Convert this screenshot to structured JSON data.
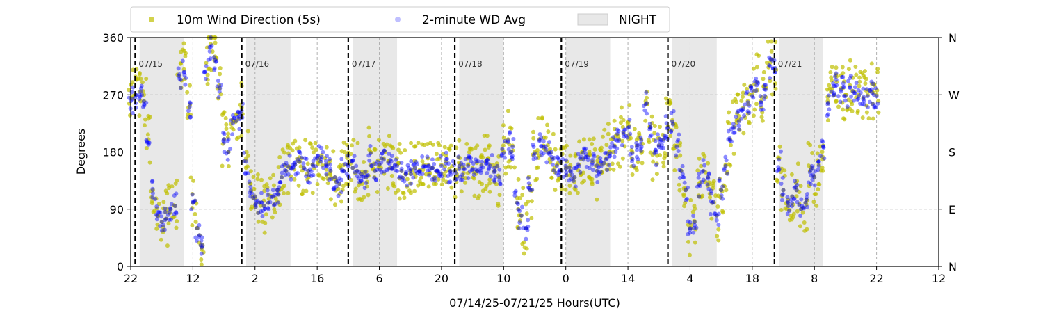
{
  "chart_data": {
    "type": "scatter",
    "title": "",
    "xlabel": "07/14/25-07/21/25  Hours(UTC)",
    "ylabel": "Degrees",
    "x_unit": "hours",
    "xlim": [
      0,
      182
    ],
    "ylim": [
      0,
      360
    ],
    "x_ticks": [
      {
        "x": 0,
        "label": "22"
      },
      {
        "x": 14,
        "label": "12"
      },
      {
        "x": 28,
        "label": "2"
      },
      {
        "x": 42,
        "label": "16"
      },
      {
        "x": 56,
        "label": "6"
      },
      {
        "x": 70,
        "label": "20"
      },
      {
        "x": 84,
        "label": "10"
      },
      {
        "x": 98,
        "label": "0"
      },
      {
        "x": 112,
        "label": "14"
      },
      {
        "x": 126,
        "label": "4"
      },
      {
        "x": 140,
        "label": "18"
      },
      {
        "x": 154,
        "label": "8"
      },
      {
        "x": 168,
        "label": "22"
      },
      {
        "x": 182,
        "label": "12"
      }
    ],
    "y_ticks": [
      0,
      90,
      180,
      270,
      360
    ],
    "y_right_ticks": [
      {
        "y": 0,
        "label": "N"
      },
      {
        "y": 90,
        "label": "E"
      },
      {
        "y": 180,
        "label": "S"
      },
      {
        "y": 270,
        "label": "W"
      },
      {
        "y": 360,
        "label": "N"
      }
    ],
    "grid": true,
    "legend_position": "top, outside plot",
    "legend": [
      {
        "name": "10m Wind Direction (5s)",
        "color": "#bfbf00",
        "kind": "marker"
      },
      {
        "name": "2-minute WD Avg",
        "color": "#0000ff",
        "kind": "marker"
      },
      {
        "name": "NIGHT",
        "color": "#e8e8e8",
        "kind": "patch"
      }
    ],
    "day_boundaries": [
      {
        "x": 1,
        "label": "07/15"
      },
      {
        "x": 25,
        "label": "07/16"
      },
      {
        "x": 49,
        "label": "07/17"
      },
      {
        "x": 73,
        "label": "07/18"
      },
      {
        "x": 97,
        "label": "07/19"
      },
      {
        "x": 121,
        "label": "07/20"
      },
      {
        "x": 145,
        "label": "07/21"
      }
    ],
    "night_periods": [
      [
        2,
        12
      ],
      [
        26,
        36
      ],
      [
        50,
        60
      ],
      [
        74,
        84
      ],
      [
        98,
        108
      ],
      [
        122,
        132
      ],
      [
        146,
        156
      ]
    ],
    "series": [
      {
        "name": "10m Wind Direction (5s)",
        "color": "#bfbf00",
        "x": [
          0,
          1,
          2,
          3,
          4,
          5,
          6,
          7,
          8,
          9,
          10,
          11,
          12,
          13,
          14,
          15,
          16,
          17,
          18,
          19,
          20,
          21,
          22,
          23,
          24,
          25,
          26,
          27,
          28,
          29,
          30,
          31,
          32,
          33,
          34,
          35,
          36,
          37,
          38,
          39,
          40,
          41,
          42,
          43,
          44,
          45,
          46,
          47,
          48,
          49,
          50,
          51,
          52,
          53,
          54,
          55,
          56,
          57,
          58,
          59,
          60,
          61,
          62,
          63,
          64,
          65,
          66,
          67,
          68,
          69,
          70,
          71,
          72,
          73,
          74,
          75,
          76,
          77,
          78,
          79,
          80,
          81,
          82,
          83,
          84,
          85,
          86,
          87,
          88,
          89,
          90,
          91,
          92,
          93,
          94,
          95,
          96,
          97,
          98,
          99,
          100,
          101,
          102,
          103,
          104,
          105,
          106,
          107,
          108,
          109,
          110,
          111,
          112,
          113,
          114,
          115,
          116,
          117,
          118,
          119,
          120,
          121,
          122,
          123,
          124,
          125,
          126,
          127,
          128,
          129,
          130,
          131,
          132,
          133,
          134,
          135,
          136,
          137,
          138,
          139,
          140,
          141,
          142,
          143,
          144,
          145,
          146,
          147,
          148,
          149,
          150,
          151,
          152,
          153,
          154,
          155,
          156,
          157,
          158,
          159,
          160,
          161,
          162,
          163,
          164,
          165,
          166,
          167,
          168
        ],
        "values": [
          265,
          270,
          275,
          260,
          200,
          120,
          80,
          70,
          75,
          90,
          95,
          300,
          310,
          250,
          100,
          60,
          30,
          320,
          350,
          330,
          280,
          200,
          180,
          230,
          240,
          250,
          170,
          130,
          110,
          100,
          95,
          100,
          110,
          120,
          140,
          150,
          155,
          160,
          165,
          155,
          150,
          160,
          170,
          175,
          160,
          150,
          140,
          130,
          150,
          160,
          155,
          150,
          145,
          140,
          180,
          150,
          160,
          170,
          165,
          155,
          160,
          150,
          145,
          150,
          155,
          150,
          160,
          160,
          155,
          150,
          160,
          165,
          150,
          150,
          155,
          155,
          160,
          155,
          150,
          160,
          165,
          160,
          150,
          140,
          180,
          200,
          190,
          100,
          80,
          60,
          120,
          180,
          200,
          190,
          180,
          170,
          160,
          150,
          155,
          150,
          140,
          160,
          170,
          175,
          165,
          150,
          160,
          170,
          180,
          190,
          200,
          210,
          220,
          180,
          190,
          200,
          260,
          220,
          180,
          190,
          200,
          220,
          230,
          190,
          150,
          120,
          60,
          70,
          130,
          150,
          140,
          100,
          80,
          120,
          160,
          200,
          220,
          230,
          250,
          260,
          270,
          290,
          260,
          280,
          320,
          310,
          170,
          120,
          100,
          110,
          120,
          90,
          100,
          150,
          140,
          160,
          190,
          260,
          280,
          290,
          280,
          270,
          285,
          275,
          270,
          265,
          270,
          275,
          270
        ]
      },
      {
        "name": "2-minute WD Avg",
        "color": "#0000ff",
        "x": [
          0,
          1,
          2,
          3,
          4,
          5,
          6,
          7,
          8,
          9,
          10,
          11,
          12,
          13,
          14,
          15,
          16,
          17,
          18,
          19,
          20,
          21,
          22,
          23,
          24,
          25,
          26,
          27,
          28,
          29,
          30,
          31,
          32,
          33,
          34,
          35,
          36,
          37,
          38,
          39,
          40,
          41,
          42,
          43,
          44,
          45,
          46,
          47,
          48,
          49,
          50,
          51,
          52,
          53,
          54,
          55,
          56,
          57,
          58,
          59,
          60,
          61,
          62,
          63,
          64,
          65,
          66,
          67,
          68,
          69,
          70,
          71,
          72,
          73,
          74,
          75,
          76,
          77,
          78,
          79,
          80,
          81,
          82,
          83,
          84,
          85,
          86,
          87,
          88,
          89,
          90,
          91,
          92,
          93,
          94,
          95,
          96,
          97,
          98,
          99,
          100,
          101,
          102,
          103,
          104,
          105,
          106,
          107,
          108,
          109,
          110,
          111,
          112,
          113,
          114,
          115,
          116,
          117,
          118,
          119,
          120,
          121,
          122,
          123,
          124,
          125,
          126,
          127,
          128,
          129,
          130,
          131,
          132,
          133,
          134,
          135,
          136,
          137,
          138,
          139,
          140,
          141,
          142,
          143,
          144,
          145,
          146,
          147,
          148,
          149,
          150,
          151,
          152,
          153,
          154,
          155,
          156,
          157,
          158,
          159,
          160,
          161,
          162,
          163,
          164,
          165,
          166,
          167,
          168
        ],
        "values": [
          260,
          265,
          270,
          255,
          195,
          115,
          80,
          70,
          75,
          90,
          95,
          295,
          305,
          245,
          100,
          60,
          30,
          315,
          345,
          325,
          275,
          195,
          180,
          225,
          235,
          245,
          165,
          125,
          110,
          100,
          95,
          100,
          110,
          120,
          140,
          150,
          155,
          160,
          165,
          155,
          150,
          160,
          170,
          172,
          160,
          150,
          140,
          130,
          150,
          158,
          155,
          150,
          145,
          140,
          178,
          150,
          160,
          168,
          163,
          155,
          158,
          150,
          145,
          150,
          155,
          150,
          158,
          158,
          155,
          150,
          158,
          162,
          150,
          150,
          153,
          153,
          158,
          153,
          150,
          158,
          162,
          158,
          150,
          140,
          178,
          198,
          188,
          100,
          80,
          60,
          120,
          178,
          198,
          188,
          178,
          168,
          158,
          150,
          153,
          150,
          140,
          158,
          168,
          172,
          163,
          150,
          158,
          168,
          178,
          188,
          198,
          208,
          218,
          178,
          188,
          198,
          255,
          218,
          178,
          188,
          198,
          218,
          228,
          188,
          150,
          120,
          60,
          70,
          128,
          150,
          140,
          100,
          80,
          120,
          158,
          198,
          218,
          228,
          248,
          258,
          268,
          285,
          258,
          278,
          315,
          305,
          168,
          120,
          100,
          110,
          120,
          90,
          100,
          148,
          140,
          158,
          188,
          255,
          275,
          285,
          278,
          268,
          282,
          273,
          268,
          263,
          268,
          273,
          268
        ]
      }
    ]
  }
}
